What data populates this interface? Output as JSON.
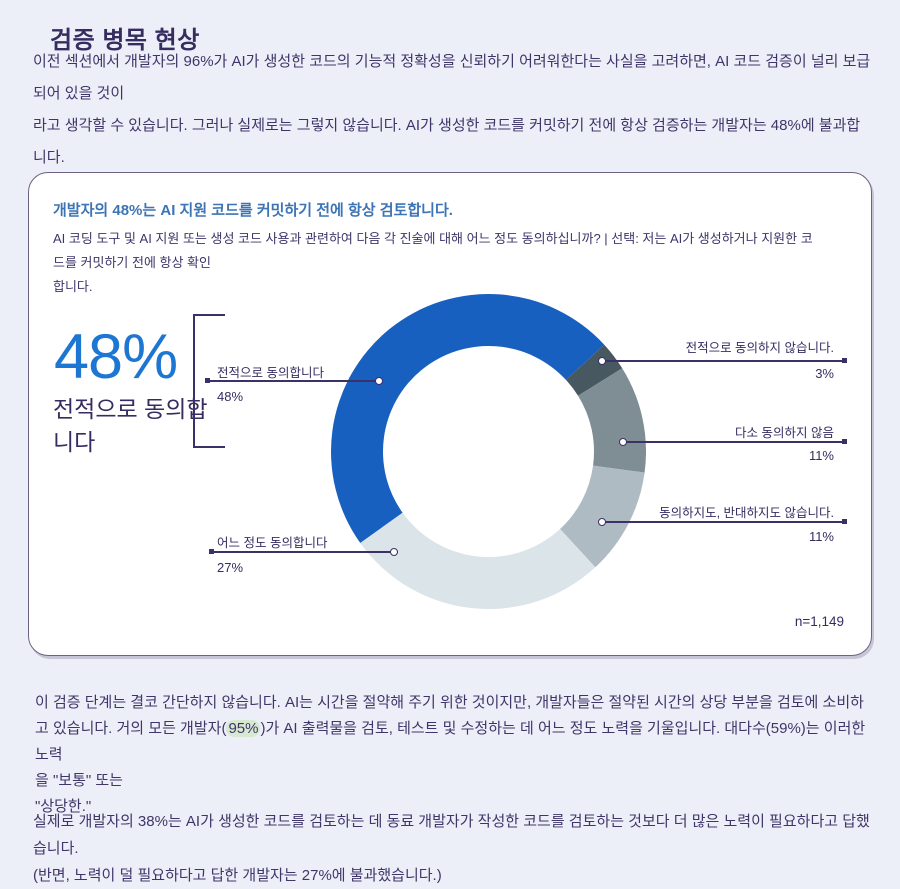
{
  "page": {
    "title": "검증 병목 현상",
    "intro": "이전 섹션에서 개발자의 96%가 AI가 생성한 코드의 기능적 정확성을 신뢰하기 어려워한다는 사실을 고려하면, AI 코드 검증이 널리 보급되어 있을 것이\n라고 생각할 수 있습니다. 그러나 실제로는 그렇지 않습니다. AI가 생성한 코드를 커밋하기 전에 항상 검증하는 개발자는 48%에 불과합니다.",
    "analysis_part1": "이 검증 단계는 결코 간단하지 않습니다. AI는 시간을 절약해 주기 위한 것이지만, 개발자들은 절약된 시간의 상당 부분을 검토에 소비하\n고 있습니다. 거의 모든 개발자(",
    "analysis_highlight": "95%",
    "analysis_part2": ")가 AI 출력물을 검토, 테스트 및 수정하는 데 어느 정도 노력을 기울입니다. 대다수(59%)는 이러한 노력\n을 \"보통\" 또는\n\"상당한.\"",
    "closing": "실제로 개발자의 38%는 AI가 생성한 코드를 검토하는 데 동료 개발자가 작성한 코드를 검토하는 것보다 더 많은 노력이 필요하다고 답했습니다.\n(반면, 노력이 덜 필요하다고 답한 개발자는 27%에 불과했습니다.)"
  },
  "card": {
    "title": "개발자의 48%는 AI 지원 코드를 커밋하기 전에 항상 검토합니다.",
    "subtitle": "AI 코딩 도구 및 AI 지원 또는 생성 코드 사용과 관련하여 다음 각 진술에 대해 어느 정도 동의하십니까? | 선택: 저는 AI가 생성하거나 지원한 코드를 커밋하기 전에 항상 확인\n합니다.",
    "stat_value": "48%",
    "stat_label": "전적으로 동의합\n니다",
    "sample_size": "n=1,149"
  },
  "chart_data": {
    "type": "pie",
    "subtype": "donut",
    "title": "개발자의 48%는 AI 지원 코드를 커밋하기 전에 항상 검토합니다.",
    "sample_size": "n=1,149",
    "start_angle_deg": 234.5,
    "legend_position": "callouts",
    "segments": [
      {
        "label": "전적으로 동의합니다",
        "value": 48,
        "display": "48%",
        "color": "#1760bf",
        "side": "left"
      },
      {
        "label": "전적으로 동의하지 않습니다.",
        "value": 3,
        "display": "3%",
        "color": "#485860",
        "side": "right"
      },
      {
        "label": "다소 동의하지 않음",
        "value": 11,
        "display": "11%",
        "color": "#7f8e94",
        "side": "right"
      },
      {
        "label": "동의하지도, 반대하지도 않습니다.",
        "value": 11,
        "display": "11%",
        "color": "#aebbc2",
        "side": "right"
      },
      {
        "label": "어느 정도 동의합니다",
        "value": 27,
        "display": "27%",
        "color": "#dbe4e9",
        "side": "left"
      }
    ]
  },
  "colors": {
    "page_bg": "#edeff8",
    "card_bg": "#ffffff",
    "card_border": "#6d6283",
    "heading_text": "#362c60",
    "body_text": "#3f3569",
    "card_title_blue": "#3c74b5",
    "stat_blue": "#1d76d2",
    "connector": "#3b3166",
    "highlight_green": "#d7e9d0"
  }
}
